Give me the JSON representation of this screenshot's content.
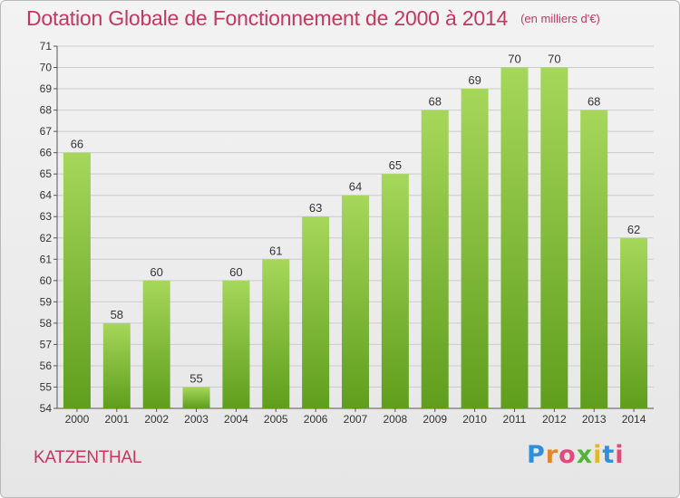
{
  "header": {
    "title": "Dotation Globale de Fonctionnement de 2000 à 2014",
    "unit": "(en milliers d'€)"
  },
  "footer": {
    "commune": "KATZENTHAL",
    "logo_text": "Proxiti"
  },
  "colors": {
    "bar_light": "#a6d75a",
    "bar_dark": "#5f9e1c",
    "title": "#c4385f",
    "grid": "#cccccc"
  },
  "chart_data": {
    "type": "bar",
    "categories": [
      "2000",
      "2001",
      "2002",
      "2003",
      "2004",
      "2005",
      "2006",
      "2007",
      "2008",
      "2009",
      "2010",
      "2011",
      "2012",
      "2013",
      "2014"
    ],
    "values": [
      66,
      58,
      60,
      55,
      60,
      61,
      63,
      64,
      65,
      68,
      69,
      70,
      70,
      68,
      62
    ],
    "title": "Dotation Globale de Fonctionnement de 2000 à 2014",
    "subtitle": "(en milliers d'€)",
    "xlabel": "",
    "ylabel": "",
    "ylim": [
      54,
      71
    ],
    "grid": true
  }
}
